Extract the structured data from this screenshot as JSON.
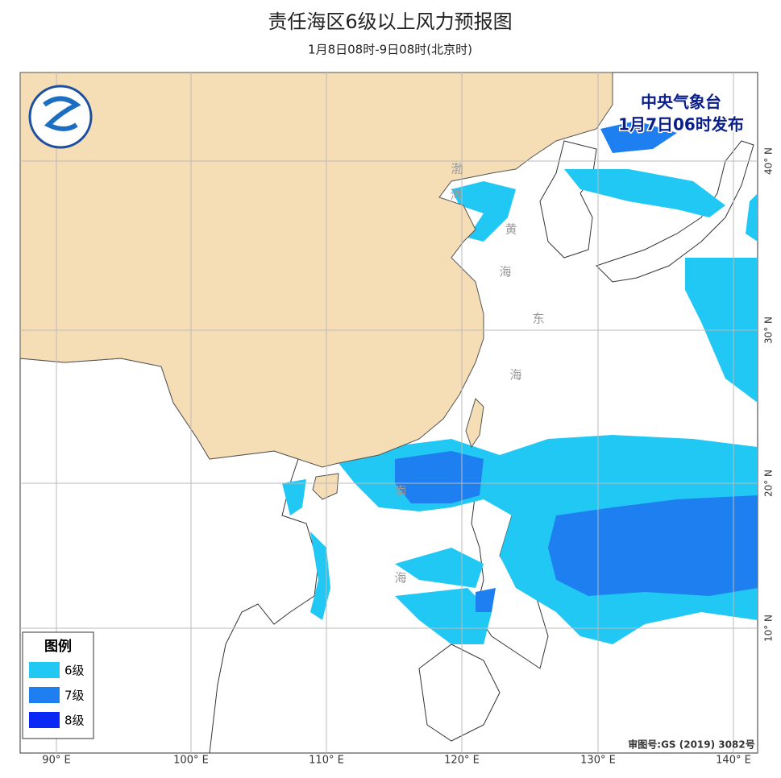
{
  "header": {
    "title": "责任海区6级以上风力预报图",
    "subtitle": "1月8日08时-9日08时(北京时)"
  },
  "issuer": {
    "agency": "中央气象台",
    "issued": "1月7日06时发布"
  },
  "legend": {
    "title": "图例",
    "items": [
      {
        "label": "6级",
        "color": "#22c8f4"
      },
      {
        "label": "7级",
        "color": "#1e7ff0"
      },
      {
        "label": "8级",
        "color": "#0a28f5"
      }
    ]
  },
  "axes": {
    "lon_labels": [
      "90° E",
      "100° E",
      "110° E",
      "120° E",
      "130° E",
      "140° E"
    ],
    "lat_labels": [
      "40° N",
      "30° N",
      "20° N",
      "10° N"
    ]
  },
  "sea_labels": [
    "渤",
    "海",
    "黄",
    "海",
    "东",
    "海",
    "南",
    "海"
  ],
  "footer": {
    "approval": "审图号:GS (2019) 3082号"
  }
}
